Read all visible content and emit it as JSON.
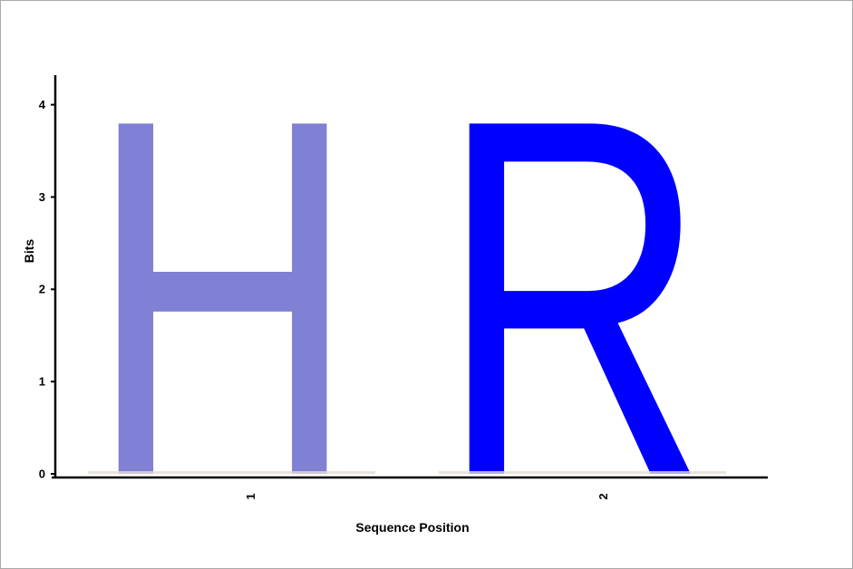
{
  "chart_data": {
    "type": "sequence-logo",
    "xlabel": "Sequence Position",
    "ylabel": "Bits",
    "ylim": [
      0,
      4.32
    ],
    "yticks": [
      0,
      1,
      2,
      3,
      4
    ],
    "positions": [
      {
        "label": "1",
        "letters": [
          {
            "letter": "H",
            "bits": 3.95,
            "color": "#8080d4"
          }
        ]
      },
      {
        "label": "2",
        "letters": [
          {
            "letter": "R",
            "bits": 3.95,
            "color": "#0000ff"
          }
        ]
      }
    ]
  }
}
